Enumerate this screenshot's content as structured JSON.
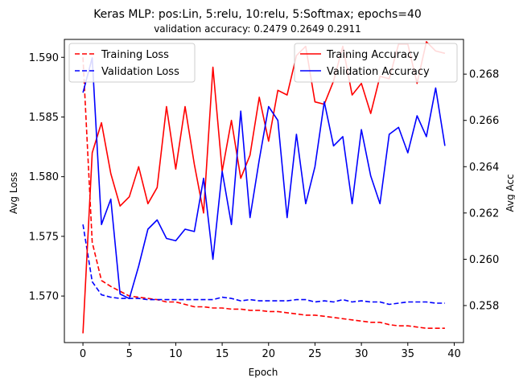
{
  "chart_data": {
    "type": "line",
    "title": "Keras MLP: pos:Lin, 5:relu, 10:relu, 5:Softmax; epochs=40",
    "subtitle": "validation accuracy:  0.2479  0.2649  0.2911",
    "xlabel": "Epoch",
    "ylabel_left": "Avg Loss",
    "ylabel_right": "Avg Acc",
    "x": [
      0,
      1,
      2,
      3,
      4,
      5,
      6,
      7,
      8,
      9,
      10,
      11,
      12,
      13,
      14,
      15,
      16,
      17,
      18,
      19,
      20,
      21,
      22,
      23,
      24,
      25,
      26,
      27,
      28,
      29,
      30,
      31,
      32,
      33,
      34,
      35,
      36,
      37,
      38,
      39
    ],
    "xlim": [
      -2.0,
      41.0
    ],
    "xticks": [
      0,
      5,
      10,
      15,
      20,
      25,
      30,
      35,
      40
    ],
    "ylim_left": [
      1.5661,
      1.5915
    ],
    "yticks_left": [
      "1.570",
      "1.575",
      "1.580",
      "1.585",
      "1.590"
    ],
    "ylim_right": [
      0.2564,
      0.2695
    ],
    "yticks_right": [
      "0.258",
      "0.260",
      "0.262",
      "0.264",
      "0.266",
      "0.268"
    ],
    "series": [
      {
        "name": "Training Loss",
        "axis": "left",
        "color": "#ff0000",
        "style": "dashed",
        "values": [
          1.59,
          1.5745,
          1.5713,
          1.5708,
          1.5704,
          1.57,
          1.5699,
          1.5698,
          1.5697,
          1.5695,
          1.5695,
          1.5693,
          1.5691,
          1.5691,
          1.569,
          1.569,
          1.5689,
          1.5689,
          1.5688,
          1.5688,
          1.5687,
          1.5687,
          1.5686,
          1.5685,
          1.5684,
          1.5684,
          1.5683,
          1.5682,
          1.5681,
          1.568,
          1.5679,
          1.5678,
          1.5678,
          1.5676,
          1.5675,
          1.5675,
          1.5674,
          1.5673,
          1.5673,
          1.5673
        ]
      },
      {
        "name": "Validation Loss",
        "axis": "left",
        "color": "#0000ff",
        "style": "dashed",
        "values": [
          1.576,
          1.5712,
          1.5701,
          1.5699,
          1.5698,
          1.5698,
          1.5698,
          1.5697,
          1.5697,
          1.5697,
          1.5697,
          1.5697,
          1.5697,
          1.5697,
          1.5697,
          1.5699,
          1.5698,
          1.5696,
          1.5697,
          1.5696,
          1.5696,
          1.5696,
          1.5696,
          1.5697,
          1.5697,
          1.5695,
          1.5696,
          1.5695,
          1.5697,
          1.5695,
          1.5696,
          1.5695,
          1.5695,
          1.5693,
          1.5694,
          1.5695,
          1.5695,
          1.5695,
          1.5694,
          1.5694
        ]
      },
      {
        "name": "Training Accuracy",
        "axis": "right",
        "color": "#ff0000",
        "style": "solid",
        "values": [
          0.2568,
          0.2646,
          0.2659,
          0.2637,
          0.2623,
          0.2627,
          0.264,
          0.2624,
          0.2631,
          0.2666,
          0.2639,
          0.2666,
          0.2641,
          0.262,
          0.2683,
          0.2638,
          0.266,
          0.2635,
          0.2645,
          0.267,
          0.2651,
          0.2673,
          0.2671,
          0.2688,
          0.2692,
          0.2668,
          0.2667,
          0.2677,
          0.2692,
          0.2671,
          0.2676,
          0.2663,
          0.2679,
          0.2678,
          0.2693,
          0.2693,
          0.2676,
          0.2694,
          0.269,
          0.2689
        ]
      },
      {
        "name": "Validation Accuracy",
        "axis": "right",
        "color": "#0000ff",
        "style": "solid",
        "values": [
          0.2672,
          0.2687,
          0.2615,
          0.2626,
          0.2585,
          0.2583,
          0.2597,
          0.2613,
          0.2617,
          0.2609,
          0.2608,
          0.2613,
          0.2612,
          0.2635,
          0.26,
          0.2638,
          0.2615,
          0.2664,
          0.2618,
          0.2643,
          0.2666,
          0.266,
          0.2618,
          0.2654,
          0.2624,
          0.264,
          0.2668,
          0.2649,
          0.2653,
          0.2624,
          0.2656,
          0.2636,
          0.2624,
          0.2654,
          0.2657,
          0.2646,
          0.2662,
          0.2653,
          0.2674,
          0.2649
        ]
      }
    ],
    "legends": [
      {
        "location": "upper-left",
        "entries": [
          "Training Loss",
          "Validation Loss"
        ]
      },
      {
        "location": "upper-right",
        "entries": [
          "Training Accuracy",
          "Validation Accuracy"
        ]
      }
    ]
  }
}
